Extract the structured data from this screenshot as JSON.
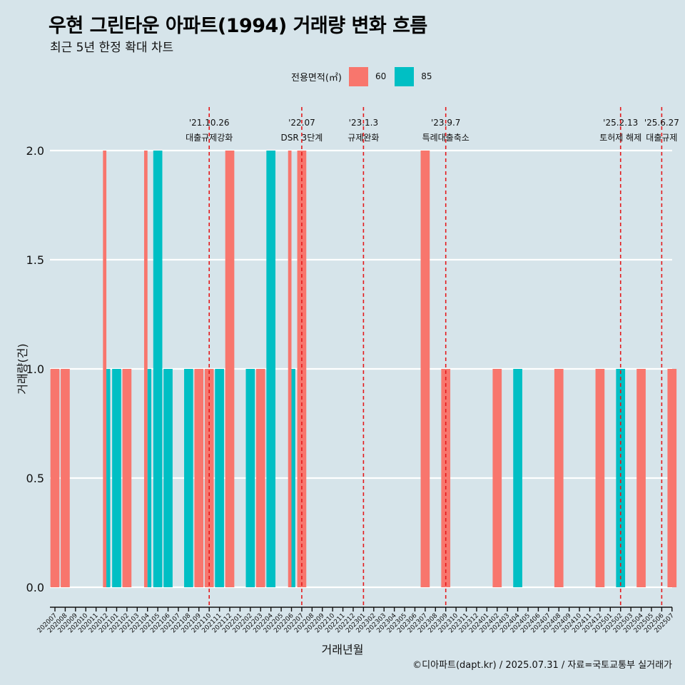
{
  "title": "우현 그린타운 아파트(1994) 거래량 변화 흐름",
  "subtitle": "최근 5년 한정 확대 차트",
  "caption": "©디아파트(dapt.kr) / 2025.07.31 / 자료=국토교통부 실거래가",
  "chart_data": {
    "type": "bar",
    "xlabel": "거래년월",
    "ylabel": "거래량(건)",
    "ylim": [
      0,
      2
    ],
    "y_ticks": [
      "0.0",
      "0.5",
      "1.0",
      "1.5",
      "2.0"
    ],
    "grid": true,
    "legend": {
      "title": "전용면적(㎡)",
      "placement": "top",
      "entries": [
        {
          "label": "60",
          "color": "#f8766d"
        },
        {
          "label": "85",
          "color": "#00bfc4"
        }
      ]
    },
    "categories": [
      "202007",
      "202008",
      "202009",
      "202010",
      "202011",
      "202012",
      "202101",
      "202102",
      "202103",
      "202104",
      "202105",
      "202106",
      "202107",
      "202108",
      "202109",
      "202110",
      "202111",
      "202112",
      "202201",
      "202202",
      "202203",
      "202204",
      "202205",
      "202206",
      "202207",
      "202208",
      "202209",
      "202210",
      "202211",
      "202212",
      "202301",
      "202302",
      "202303",
      "202304",
      "202305",
      "202306",
      "202307",
      "202308",
      "202309",
      "202310",
      "202311",
      "202312",
      "202401",
      "202402",
      "202403",
      "202404",
      "202405",
      "202406",
      "202407",
      "202408",
      "202409",
      "202410",
      "202411",
      "202412",
      "202501",
      "202502",
      "202503",
      "202504",
      "202505",
      "202506",
      "202507"
    ],
    "series": [
      {
        "name": "60",
        "color": "#f8766d",
        "values": [
          1,
          1,
          0,
          0,
          0,
          2,
          0,
          1,
          0,
          2,
          0,
          0,
          0,
          0,
          1,
          1,
          0,
          2,
          0,
          0,
          1,
          0,
          0,
          2,
          2,
          0,
          0,
          0,
          0,
          0,
          0,
          0,
          0,
          0,
          0,
          0,
          2,
          0,
          1,
          0,
          0,
          0,
          0,
          1,
          0,
          0,
          0,
          0,
          0,
          1,
          0,
          0,
          0,
          1,
          0,
          0,
          0,
          1,
          0,
          0,
          1
        ]
      },
      {
        "name": "85",
        "color": "#00bfc4",
        "values": [
          0,
          0,
          0,
          0,
          0,
          1,
          1,
          0,
          0,
          1,
          2,
          1,
          0,
          1,
          0,
          0,
          1,
          0,
          0,
          1,
          0,
          2,
          0,
          1,
          0,
          0,
          0,
          0,
          0,
          0,
          0,
          0,
          0,
          0,
          0,
          0,
          0,
          0,
          0,
          0,
          0,
          0,
          0,
          0,
          0,
          1,
          0,
          0,
          0,
          0,
          0,
          0,
          0,
          0,
          0,
          1,
          0,
          0,
          0,
          0,
          0
        ]
      }
    ],
    "annotations": [
      {
        "category": "202110",
        "date": "'21.10.26",
        "text": "대출규제강화"
      },
      {
        "category": "202207",
        "date": "'22.07",
        "text": "DSR 3단계"
      },
      {
        "category": "202301",
        "date": "'23.1.3",
        "text": "규제완화"
      },
      {
        "category": "202309",
        "date": "'23.9.7",
        "text": "특례대출축소"
      },
      {
        "category": "202502",
        "date": "'25.2.13",
        "text": "토허제 해제"
      },
      {
        "category": "202506",
        "date": "'25.6.27",
        "text": "대출규제"
      }
    ]
  }
}
